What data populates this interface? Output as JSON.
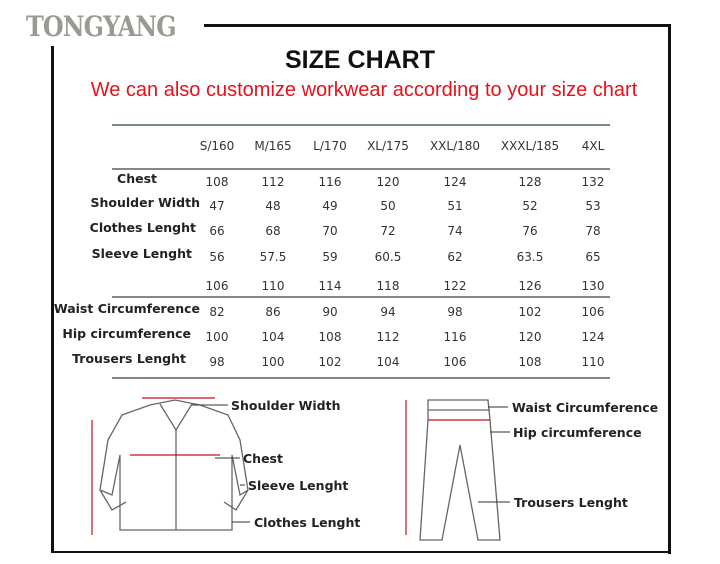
{
  "logo": "TONGYANG",
  "title": "SIZE CHART",
  "subtitle": "We can also customize workwear according to your size chart",
  "table": {
    "columns": [
      "S/160",
      "M/165",
      "L/170",
      "XL/175",
      "XXL/180",
      "XXXL/185",
      "4XL"
    ],
    "rows": [
      {
        "label": "Chest",
        "values": [
          "108",
          "112",
          "116",
          "120",
          "124",
          "128",
          "132"
        ]
      },
      {
        "label": "Shoulder Width",
        "values": [
          "47",
          "48",
          "49",
          "50",
          "51",
          "52",
          "53"
        ]
      },
      {
        "label": "Clothes Lenght",
        "values": [
          "66",
          "68",
          "70",
          "72",
          "74",
          "76",
          "78"
        ]
      },
      {
        "label": "Sleeve Lenght",
        "values": [
          "56",
          "57.5",
          "59",
          "60.5",
          "62",
          "63.5",
          "65"
        ]
      },
      {
        "label": "",
        "values": [
          "106",
          "110",
          "114",
          "118",
          "122",
          "126",
          "130"
        ]
      },
      {
        "label": "Waist Circumference",
        "values": [
          "82",
          "86",
          "90",
          "94",
          "98",
          "102",
          "106"
        ]
      },
      {
        "label": "Hip circumference",
        "values": [
          "100",
          "104",
          "108",
          "112",
          "116",
          "120",
          "124"
        ]
      },
      {
        "label": "Trousers Lenght",
        "values": [
          "98",
          "100",
          "102",
          "104",
          "106",
          "108",
          "110"
        ]
      }
    ]
  },
  "diagram": {
    "shirt_labels": [
      "Shoulder Width",
      "Chest",
      "Sleeve Lenght",
      "Clothes Lenght"
    ],
    "pants_labels": [
      "Waist Circumference",
      "Hip circumference",
      "Trousers Lenght"
    ],
    "arrow_color": "#c0141c"
  }
}
